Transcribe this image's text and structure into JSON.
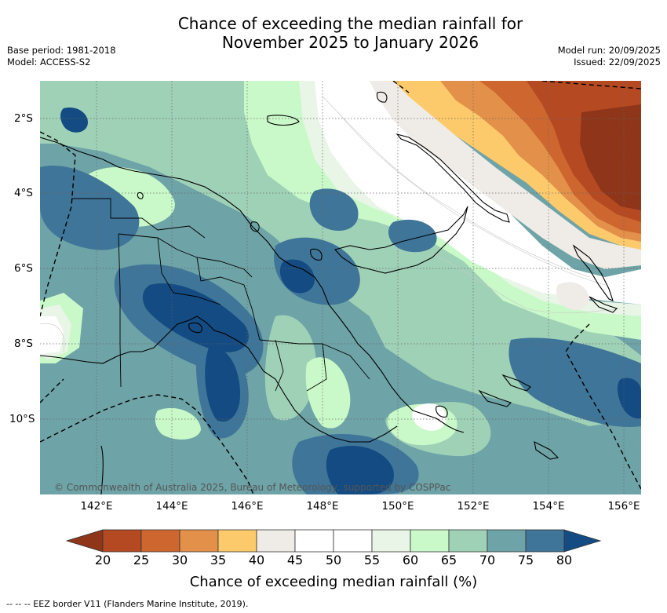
{
  "title": {
    "line1": "Chance of exceeding the median rainfall for",
    "line2": "November 2025 to January 2026"
  },
  "meta": {
    "base_period": "Base period: 1981-2018",
    "model": "Model: ACCESS-S2",
    "model_run": "Model run: 20/09/2025",
    "issued": "Issued: 22/09/2025"
  },
  "map": {
    "lat_labels": [
      "2°S",
      "4°S",
      "6°S",
      "8°S",
      "10°S"
    ],
    "lon_labels": [
      "142°E",
      "144°E",
      "146°E",
      "148°E",
      "150°E",
      "152°E",
      "154°E",
      "156°E"
    ],
    "copyright": "© Commonwealth of Australia 2025, Bureau of Meteorology, supported by COSPPac"
  },
  "legend": {
    "ticks": [
      "20",
      "25",
      "30",
      "35",
      "40",
      "45",
      "50",
      "55",
      "60",
      "65",
      "70",
      "75",
      "80"
    ],
    "colors": [
      "#8f3519",
      "#b54a22",
      "#ce6630",
      "#e3914a",
      "#fdca6b",
      "#efebe6",
      "#ffffff",
      "#ffffff",
      "#e9f5e6",
      "#c9f9c8",
      "#9fd1b7",
      "#6ea3a7",
      "#3f7598",
      "#134b82"
    ],
    "label": "Chance of exceeding median rainfall (%)"
  },
  "footnote": "-- -- -- EEZ border V11 (Flanders Marine Institute, 2019)."
}
